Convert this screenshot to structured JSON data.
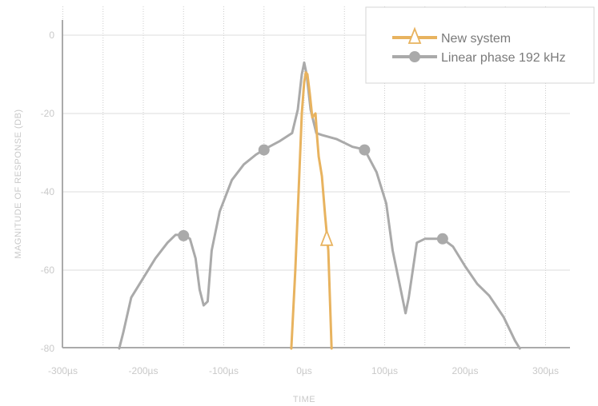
{
  "chart_data": {
    "type": "line",
    "title": "",
    "xlabel": "TIME",
    "ylabel": "MAGNITUDE OF RESPONSE (DB)",
    "xlim": [
      -300,
      300
    ],
    "ylim": [
      -80,
      0
    ],
    "x_unit": "µs",
    "x_ticks": [
      -300,
      -200,
      -100,
      0,
      100,
      200,
      300
    ],
    "x_tick_labels": [
      "-300µs",
      "-200µs",
      "-100µs",
      "0µs",
      "100µs",
      "200µs",
      "300µs"
    ],
    "y_ticks": [
      0,
      -20,
      -40,
      -60,
      -80
    ],
    "y_tick_labels": [
      "0",
      "-20",
      "-40",
      "-60",
      "-80"
    ],
    "grid": {
      "vertical_dotted_every": 50,
      "horizontal": true
    },
    "legend_position": "top-right",
    "series": [
      {
        "name": "New system",
        "color": "#e8b35f",
        "marker": "triangle-open",
        "x": [
          -16,
          -11,
          -7,
          -3,
          0,
          2,
          4,
          7,
          10,
          14,
          16,
          18,
          22,
          26,
          30,
          34
        ],
        "y": [
          -80,
          -60,
          -40,
          -20,
          -12,
          -9.5,
          -10,
          -15,
          -21,
          -20,
          -26,
          -31,
          -36,
          -46,
          -55,
          -80
        ],
        "markers": [
          {
            "x": 28,
            "y": -52
          }
        ]
      },
      {
        "name": "Linear phase 192 kHz",
        "color": "#aaaaaa",
        "marker": "circle",
        "x": [
          -230,
          -225,
          -215,
          -200,
          -185,
          -170,
          -160,
          -150,
          -142,
          -135,
          -130,
          -125,
          -120,
          -115,
          -105,
          -90,
          -75,
          -60,
          -50,
          -30,
          -15,
          -8,
          -3,
          0,
          3,
          8,
          15,
          22,
          40,
          60,
          75,
          90,
          102,
          110,
          118,
          126,
          130,
          140,
          150,
          160,
          172,
          185,
          200,
          215,
          230,
          248,
          262,
          268
        ],
        "y": [
          -80,
          -76,
          -67,
          -62,
          -57,
          -53,
          -51,
          -51,
          -52,
          -57,
          -65,
          -69,
          -68,
          -55,
          -45,
          -37,
          -33,
          -30.5,
          -29.2,
          -27,
          -25,
          -19,
          -10,
          -7,
          -10,
          -19,
          -25,
          -25.5,
          -26.5,
          -28.5,
          -29.2,
          -35,
          -43,
          -55,
          -63,
          -71,
          -67,
          -53,
          -52,
          -52,
          -52,
          -54,
          -59,
          -63.5,
          -66.5,
          -72,
          -78,
          -80
        ],
        "markers": [
          {
            "x": -150,
            "y": -51.2
          },
          {
            "x": -50,
            "y": -29.3
          },
          {
            "x": 75,
            "y": -29.3
          },
          {
            "x": 172,
            "y": -52
          }
        ]
      }
    ]
  }
}
